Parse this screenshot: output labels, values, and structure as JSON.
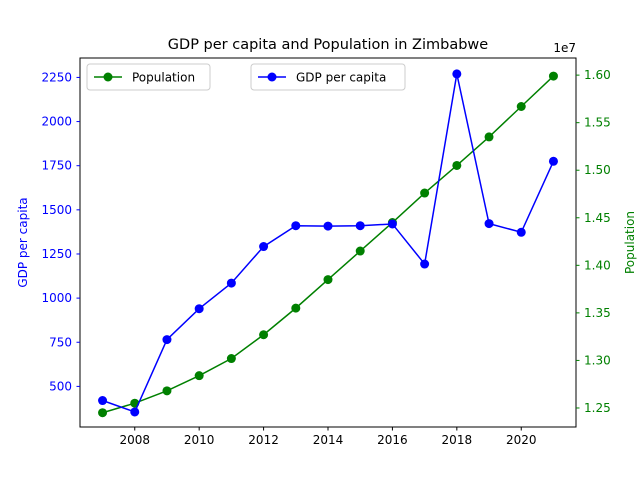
{
  "chart_data": {
    "type": "line",
    "title": "GDP per capita and Population in Zimbabwe",
    "x": [
      2007,
      2008,
      2009,
      2010,
      2011,
      2012,
      2013,
      2014,
      2015,
      2016,
      2017,
      2018,
      2019,
      2020,
      2021
    ],
    "x_ticks": [
      "2008",
      "2010",
      "2012",
      "2014",
      "2016",
      "2018",
      "2020"
    ],
    "xlim": [
      2006.3,
      2021.7
    ],
    "left_axis": {
      "label": "GDP per capita",
      "color": "#0000ff",
      "ylim": [
        270,
        2360
      ],
      "ticks": [
        "500",
        "750",
        "1000",
        "1250",
        "1500",
        "1750",
        "2000",
        "2250"
      ]
    },
    "right_axis": {
      "label": "Population",
      "color": "#008000",
      "ylim": [
        12300000,
        16180000
      ],
      "ticks": [
        "1.25",
        "1.30",
        "1.35",
        "1.40",
        "1.45",
        "1.50",
        "1.55",
        "1.60"
      ],
      "offset_text": "1e7"
    },
    "series": [
      {
        "name": "GDP per capita",
        "axis": "left",
        "color": "#0000ff",
        "values": [
          420,
          355,
          765,
          940,
          1085,
          1292,
          1410,
          1408,
          1410,
          1420,
          1193,
          2270,
          1422,
          1373,
          1775
        ]
      },
      {
        "name": "Population",
        "axis": "right",
        "color": "#008000",
        "values": [
          12450000,
          12550000,
          12680000,
          12840000,
          13020000,
          13270000,
          13550000,
          13850000,
          14150000,
          14450000,
          14760000,
          15050000,
          15350000,
          15670000,
          15990000
        ]
      }
    ],
    "legends": [
      {
        "series": "Population",
        "placement": "upper left"
      },
      {
        "series": "GDP per capita",
        "placement": "upper center"
      }
    ],
    "grid": false
  }
}
